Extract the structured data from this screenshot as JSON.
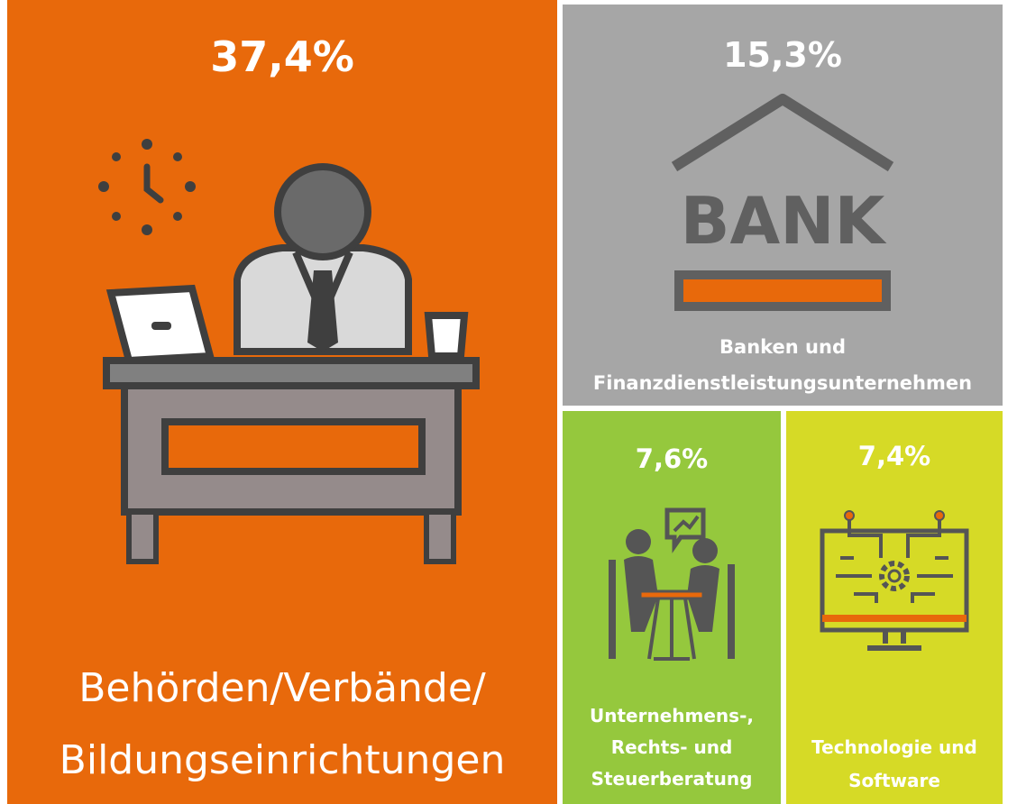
{
  "tiles": [
    {
      "value": "37,4%",
      "label": [
        "Behörden/Verbände/",
        "Bildungseinrichtungen"
      ],
      "color": "#e8690b"
    },
    {
      "value": "15,3%",
      "label": [
        "Banken und",
        "Finanzdienstleistungsunternehmen"
      ],
      "color": "#a6a6a6",
      "icon_text": "BANK"
    },
    {
      "value": "7,6%",
      "label": [
        "Unternehmens-,",
        "Rechts- und",
        "Steuerberatung"
      ],
      "color": "#95c83d"
    },
    {
      "value": "7,4%",
      "label": [
        "Technologie und",
        "Software"
      ],
      "color": "#d6da26"
    }
  ]
}
